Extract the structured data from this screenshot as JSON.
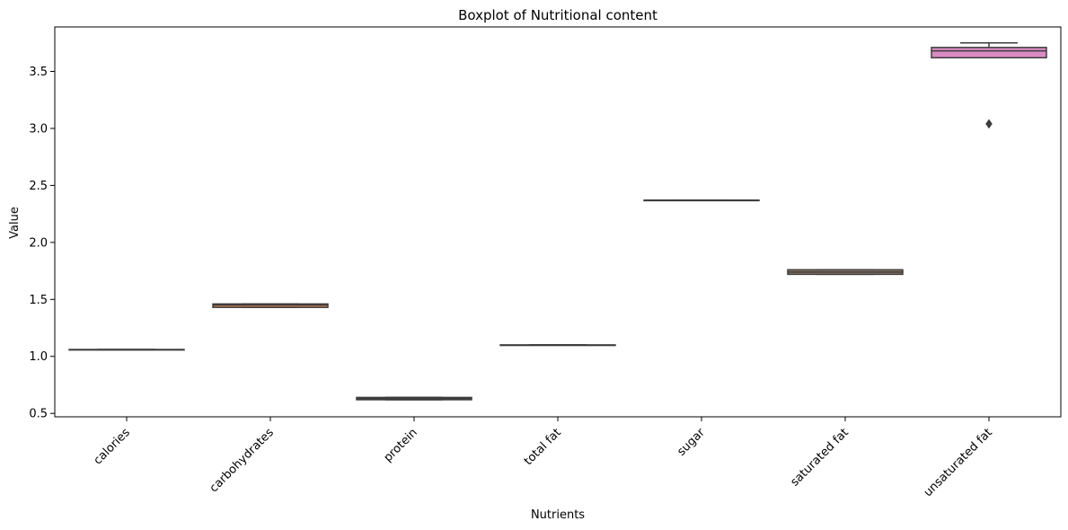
{
  "chart_data": {
    "type": "boxplot",
    "title": "Boxplot of Nutritional content",
    "xlabel": "Nutrients",
    "ylabel": "Value",
    "ylim": [
      0.47,
      3.89
    ],
    "yticks": [
      0.5,
      1.0,
      1.5,
      2.0,
      2.5,
      3.0,
      3.5
    ],
    "ytick_labels": [
      "0.5",
      "1.0",
      "1.5",
      "2.0",
      "2.5",
      "3.0",
      "3.5"
    ],
    "grid": false,
    "categories": [
      "calories",
      "carbohydrates",
      "protein",
      "total fat",
      "sugar",
      "saturated fat",
      "unsaturated fat"
    ],
    "boxes": [
      {
        "category": "calories",
        "min": 1.06,
        "q1": 1.06,
        "median": 1.06,
        "q3": 1.06,
        "max": 1.06,
        "outliers": [],
        "color": "#4c72b0"
      },
      {
        "category": "carbohydrates",
        "min": 1.43,
        "q1": 1.43,
        "median": 1.45,
        "q3": 1.46,
        "max": 1.46,
        "outliers": [],
        "color": "#dd8452"
      },
      {
        "category": "protein",
        "min": 0.62,
        "q1": 0.62,
        "median": 0.63,
        "q3": 0.64,
        "max": 0.64,
        "outliers": [],
        "color": "#55a868"
      },
      {
        "category": "total fat",
        "min": 1.1,
        "q1": 1.1,
        "median": 1.1,
        "q3": 1.1,
        "max": 1.1,
        "outliers": [],
        "color": "#c44e52"
      },
      {
        "category": "sugar",
        "min": 2.37,
        "q1": 2.37,
        "median": 2.37,
        "q3": 2.37,
        "max": 2.37,
        "outliers": [],
        "color": "#8172b3"
      },
      {
        "category": "saturated fat",
        "min": 1.72,
        "q1": 1.72,
        "median": 1.74,
        "q3": 1.76,
        "max": 1.76,
        "outliers": [],
        "color": "#937860"
      },
      {
        "category": "unsaturated fat",
        "min": 3.62,
        "q1": 3.62,
        "median": 3.68,
        "q3": 3.71,
        "max": 3.75,
        "outliers": [
          3.04
        ],
        "color": "#da8bc3"
      }
    ]
  }
}
